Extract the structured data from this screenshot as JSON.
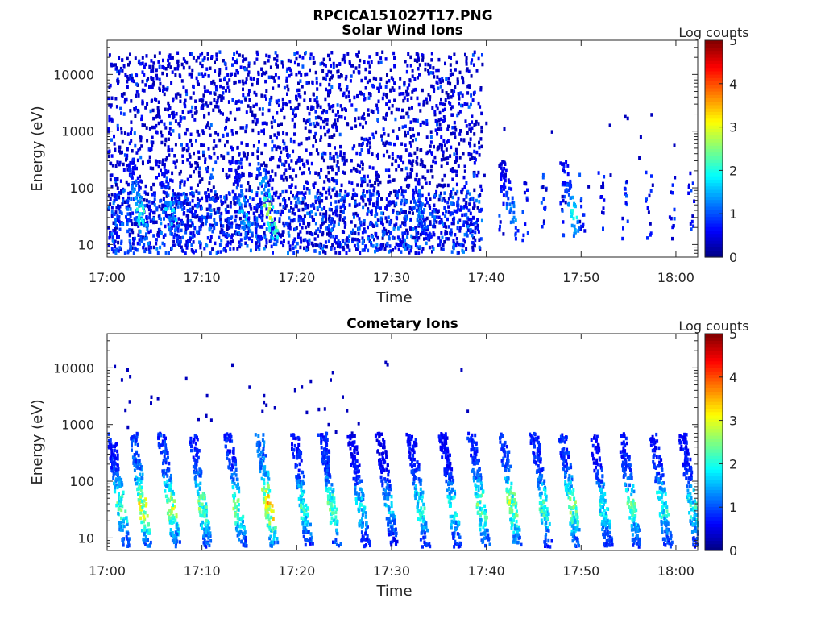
{
  "figure": {
    "title": "RPCICA151027T17.PNG"
  },
  "chart_data": [
    {
      "type": "heatmap",
      "title": "Solar Wind Ions",
      "xlabel": "Time",
      "ylabel": "Energy (eV)",
      "x_ticks": [
        "17:00",
        "17:10",
        "17:20",
        "17:30",
        "17:40",
        "17:50",
        "18:00"
      ],
      "x_range": [
        "17:00",
        "18:02"
      ],
      "y_scale": "log",
      "y_ticks": [
        "10",
        "100",
        "1000",
        "10000"
      ],
      "y_range": [
        6,
        40000
      ],
      "colorbar": {
        "label": "Log counts",
        "range": [
          0,
          5
        ],
        "ticks": [
          "0",
          "1",
          "2",
          "3",
          "4",
          "5"
        ],
        "colormap": "jet"
      },
      "bursts": [
        {
          "time_min": 2.3,
          "level": 2.2
        },
        {
          "time_min": 5.5,
          "level": 1.8
        },
        {
          "time_min": 13.2,
          "level": 1.7
        },
        {
          "time_min": 16.0,
          "level": 3.0
        },
        {
          "time_min": 32.0,
          "level": 1.3
        },
        {
          "time_min": 41.5,
          "level": 1.5
        },
        {
          "time_min": 48.0,
          "level": 2.0
        }
      ],
      "notes": "Sparse solar-wind counts (mostly ~0-1 log counts) spanning 10 eV to ~30 keV until about 17:39, then isolated low-energy columns."
    },
    {
      "type": "heatmap",
      "title": "Cometary Ions",
      "xlabel": "Time",
      "ylabel": "Energy (eV)",
      "x_ticks": [
        "17:00",
        "17:10",
        "17:20",
        "17:30",
        "17:40",
        "17:50",
        "18:00"
      ],
      "x_range": [
        "17:00",
        "18:02"
      ],
      "y_scale": "log",
      "y_ticks": [
        "10",
        "100",
        "1000",
        "10000"
      ],
      "y_range": [
        6,
        40000
      ],
      "colorbar": {
        "label": "Log counts",
        "range": [
          0,
          5
        ],
        "ticks": [
          "0",
          "1",
          "2",
          "3",
          "4",
          "5"
        ],
        "colormap": "jet"
      },
      "bursts": [
        {
          "time_min": 0.3,
          "level": 2.5
        },
        {
          "time_min": 2.6,
          "level": 3.3
        },
        {
          "time_min": 5.6,
          "level": 3.0
        },
        {
          "time_min": 8.9,
          "level": 2.7
        },
        {
          "time_min": 12.6,
          "level": 2.7
        },
        {
          "time_min": 15.9,
          "level": 3.8
        },
        {
          "time_min": 19.6,
          "level": 2.4
        },
        {
          "time_min": 22.6,
          "level": 2.6
        },
        {
          "time_min": 25.6,
          "level": 2.0
        },
        {
          "time_min": 28.6,
          "level": 1.8
        },
        {
          "time_min": 31.9,
          "level": 2.3
        },
        {
          "time_min": 35.3,
          "level": 2.2
        },
        {
          "time_min": 38.3,
          "level": 2.7
        },
        {
          "time_min": 41.6,
          "level": 3.0
        },
        {
          "time_min": 44.9,
          "level": 2.5
        },
        {
          "time_min": 47.9,
          "level": 2.8
        },
        {
          "time_min": 51.2,
          "level": 2.2
        },
        {
          "time_min": 54.2,
          "level": 2.5
        },
        {
          "time_min": 57.5,
          "level": 2.3
        },
        {
          "time_min": 60.6,
          "level": 2.2
        }
      ],
      "notes": "Repeating bursts every ~3 minutes, dispersing from ~700 eV down to ~10 eV, peak near 30-50 eV."
    }
  ]
}
